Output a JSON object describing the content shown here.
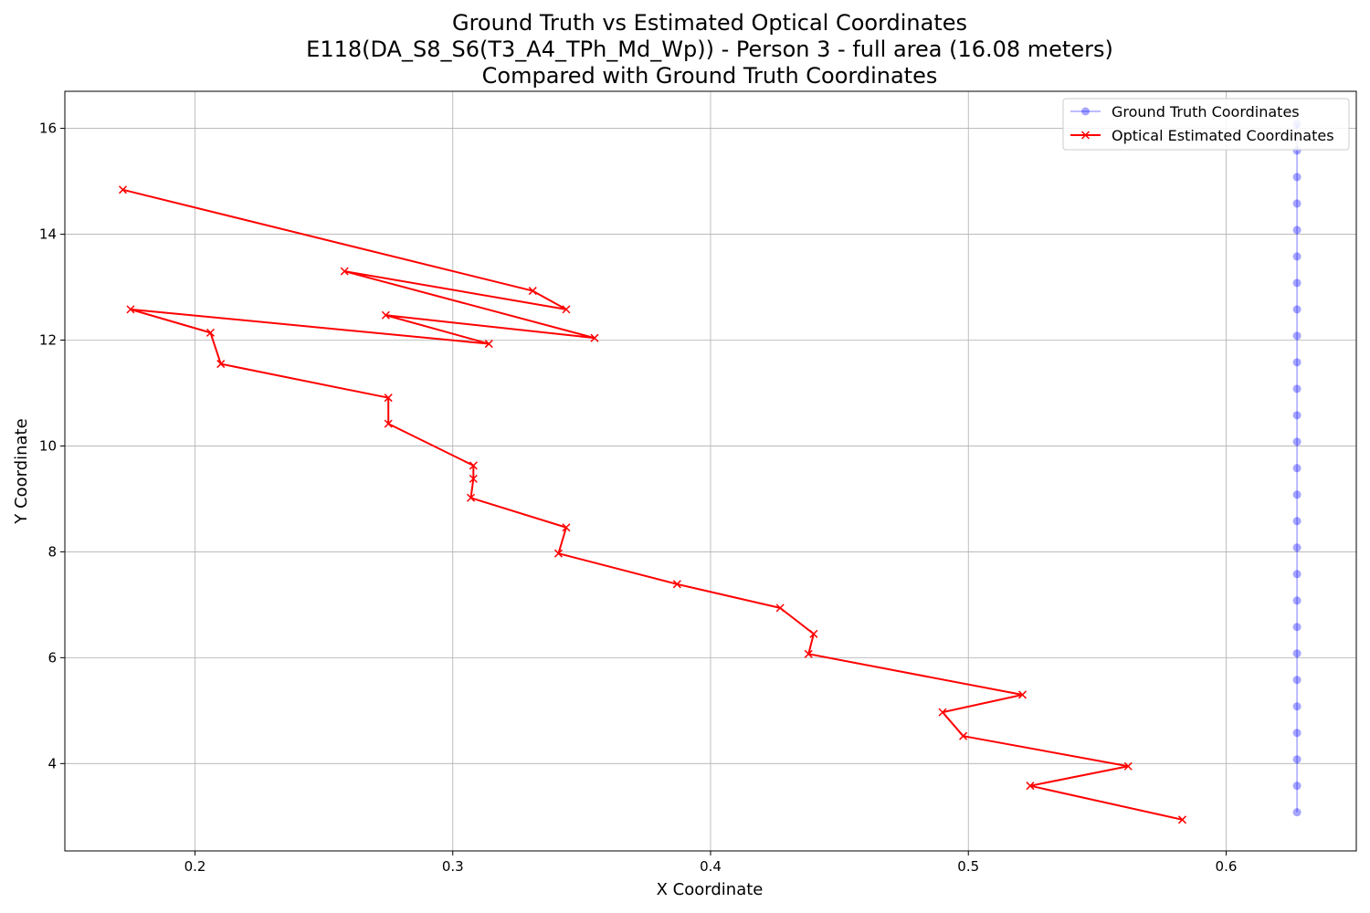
{
  "chart_data": {
    "type": "line",
    "title_lines": [
      "Ground Truth vs Estimated Optical Coordinates",
      "E118(DA_S8_S6(T3_A4_TPh_Md_Wp)) - Person 3 - full area (16.08 meters)",
      "Compared with Ground Truth Coordinates"
    ],
    "xlabel": "X Coordinate",
    "ylabel": "Y Coordinate",
    "xlim": [
      0.1495,
      0.6505
    ],
    "ylim": [
      2.35,
      16.7
    ],
    "xticks": [
      "0.2",
      "0.3",
      "0.4",
      "0.5",
      "0.6"
    ],
    "yticks": [
      "4",
      "6",
      "8",
      "10",
      "12",
      "14",
      "16"
    ],
    "grid": true,
    "legend_position": "upper right",
    "series": [
      {
        "name": "Ground Truth Coordinates",
        "color": "#0000ff",
        "marker": "circle",
        "alpha": 0.35,
        "points": [
          [
            0.6275,
            3.08
          ],
          [
            0.6275,
            3.58
          ],
          [
            0.6275,
            4.08
          ],
          [
            0.6275,
            4.58
          ],
          [
            0.6275,
            5.08
          ],
          [
            0.6275,
            5.58
          ],
          [
            0.6275,
            6.08
          ],
          [
            0.6275,
            6.58
          ],
          [
            0.6275,
            7.08
          ],
          [
            0.6275,
            7.58
          ],
          [
            0.6275,
            8.08
          ],
          [
            0.6275,
            8.58
          ],
          [
            0.6275,
            9.08
          ],
          [
            0.6275,
            9.58
          ],
          [
            0.6275,
            10.08
          ],
          [
            0.6275,
            10.58
          ],
          [
            0.6275,
            11.08
          ],
          [
            0.6275,
            11.58
          ],
          [
            0.6275,
            12.08
          ],
          [
            0.6275,
            12.58
          ],
          [
            0.6275,
            13.08
          ],
          [
            0.6275,
            13.58
          ],
          [
            0.6275,
            14.08
          ],
          [
            0.6275,
            14.58
          ],
          [
            0.6275,
            15.08
          ],
          [
            0.6275,
            15.58
          ],
          [
            0.6275,
            16.08
          ]
        ]
      },
      {
        "name": "Optical Estimated Coordinates",
        "color": "#ff0000",
        "marker": "x",
        "alpha": 1,
        "points": [
          [
            0.583,
            2.94
          ],
          [
            0.524,
            3.58
          ],
          [
            0.562,
            3.95
          ],
          [
            0.498,
            4.52
          ],
          [
            0.49,
            4.97
          ],
          [
            0.521,
            5.3
          ],
          [
            0.438,
            6.07
          ],
          [
            0.44,
            6.45
          ],
          [
            0.427,
            6.94
          ],
          [
            0.387,
            7.39
          ],
          [
            0.341,
            7.97
          ],
          [
            0.344,
            8.46
          ],
          [
            0.307,
            9.02
          ],
          [
            0.308,
            9.38
          ],
          [
            0.308,
            9.63
          ],
          [
            0.275,
            10.42
          ],
          [
            0.275,
            10.91
          ],
          [
            0.21,
            11.55
          ],
          [
            0.206,
            12.14
          ],
          [
            0.175,
            12.58
          ],
          [
            0.314,
            11.93
          ],
          [
            0.274,
            12.47
          ],
          [
            0.355,
            12.04
          ],
          [
            0.258,
            13.3
          ],
          [
            0.344,
            12.58
          ],
          [
            0.331,
            12.93
          ],
          [
            0.172,
            14.84
          ]
        ]
      }
    ]
  }
}
